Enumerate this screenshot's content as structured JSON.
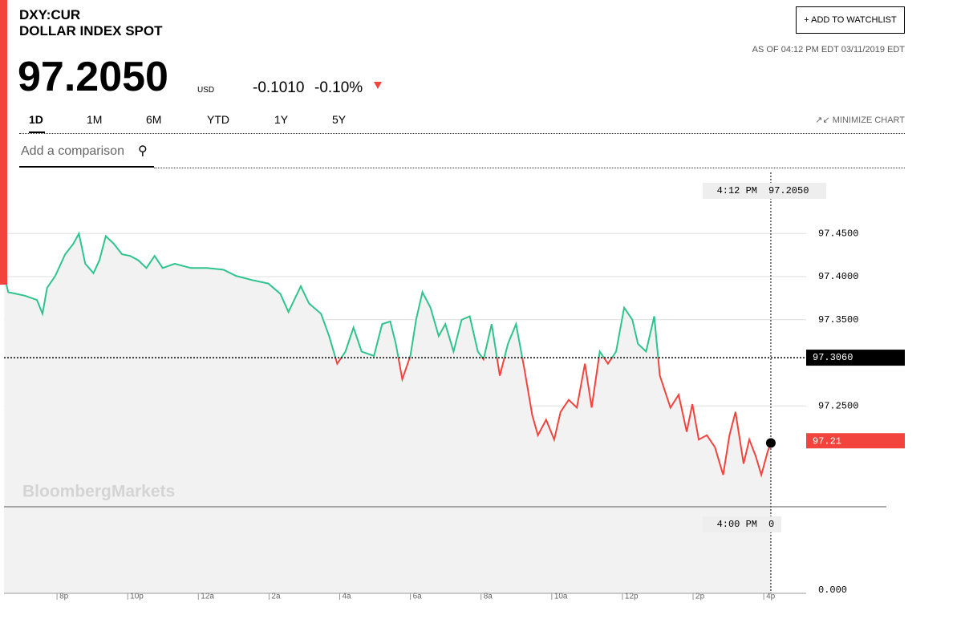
{
  "header": {
    "symbol": "DXY:CUR",
    "name": "DOLLAR INDEX SPOT",
    "price": "97.2050",
    "currency": "USD",
    "change": "-0.1010",
    "change_pct": "-0.10%",
    "watchlist_button": "ADD TO WATCHLIST",
    "as_of": "AS OF 04:12 PM EDT 03/11/2019 EDT"
  },
  "range_tabs": [
    "1D",
    "1M",
    "6M",
    "YTD",
    "1Y",
    "5Y"
  ],
  "minimize": "MINIMIZE CHART",
  "comparison_placeholder": "Add a comparison",
  "chart_data": {
    "type": "line",
    "watermark": "BloombergMarkets",
    "x": [
      18.51,
      18.62,
      19.08,
      19.43,
      19.59,
      19.72,
      19.95,
      20.23,
      20.46,
      20.62,
      20.8,
      21.03,
      21.2,
      21.38,
      21.61,
      21.84,
      22.07,
      22.3,
      22.53,
      22.76,
      22.99,
      23.33,
      23.79,
      24.25,
      24.71,
      25.06,
      25.52,
      25.98,
      26.32,
      26.55,
      26.9,
      27.13,
      27.47,
      27.7,
      27.93,
      28.16,
      28.39,
      28.62,
      28.97,
      29.2,
      29.43,
      29.59,
      29.77,
      30.0,
      30.16,
      30.34,
      30.57,
      30.8,
      30.99,
      31.22,
      31.45,
      31.68,
      31.91,
      32.07,
      32.3,
      32.53,
      32.76,
      32.99,
      33.22,
      33.45,
      33.61,
      33.84,
      34.07,
      34.25,
      34.48,
      34.71,
      34.94,
      35.13,
      35.36,
      35.59,
      35.82,
      36.05,
      36.28,
      36.44,
      36.67,
      36.9,
      37.06,
      37.36,
      37.59,
      37.82,
      37.98,
      38.16,
      38.39,
      38.62,
      38.85,
      39.03,
      39.2,
      39.43,
      39.59,
      39.77,
      39.93,
      40.11,
      40.2
    ],
    "series": [
      {
        "values": [
          97.401,
          97.382,
          97.378,
          97.373,
          97.357,
          97.387,
          97.401,
          97.426,
          97.438,
          97.45,
          97.415,
          97.404,
          97.419,
          97.447,
          97.438,
          97.426,
          97.424,
          97.419,
          97.41,
          97.424,
          97.41,
          97.415,
          97.41,
          97.41,
          97.408,
          97.401,
          97.396,
          97.392,
          97.38,
          97.359,
          97.389,
          97.369,
          97.357,
          97.331,
          97.299,
          97.313,
          97.341,
          97.313,
          97.308,
          97.345,
          97.348,
          97.322,
          97.281,
          97.308,
          97.35,
          97.382,
          97.364,
          97.331,
          97.345,
          97.313,
          97.35,
          97.354,
          97.313,
          97.304,
          97.345,
          97.285,
          97.322,
          97.345,
          97.294,
          97.239,
          97.216,
          97.234,
          97.211,
          97.243,
          97.257,
          97.248,
          97.299,
          97.248,
          97.313,
          97.299,
          97.313,
          97.364,
          97.35,
          97.322,
          97.313,
          97.354,
          97.285,
          97.248,
          97.263,
          97.22,
          97.252,
          97.211,
          97.216,
          97.202,
          97.17,
          97.216,
          97.243,
          97.183,
          97.211,
          97.192,
          97.17,
          97.197,
          97.207
        ],
        "color_above": "#2ec48d",
        "color_below": "#f2443d"
      }
    ],
    "reference": {
      "value": 97.306,
      "label": "97.3060"
    },
    "last": {
      "value": 97.21,
      "label": "97.21"
    },
    "crosshair": {
      "x": 40.2,
      "time": "4:12 PM",
      "price": "97.2050"
    },
    "volume_tooltip": {
      "time": "4:00 PM",
      "value": "0"
    },
    "volume_axis_label": "0.000",
    "xlim": [
      18.5,
      41.2
    ],
    "xticks": [
      {
        "value": 20,
        "label": "8p"
      },
      {
        "value": 22,
        "label": "10p"
      },
      {
        "value": 24,
        "label": "12a"
      },
      {
        "value": 26,
        "label": "2a"
      },
      {
        "value": 28,
        "label": "4a"
      },
      {
        "value": 30,
        "label": "6a"
      },
      {
        "value": 32,
        "label": "8a"
      },
      {
        "value": 34,
        "label": "10a"
      },
      {
        "value": 36,
        "label": "12p"
      },
      {
        "value": 38,
        "label": "2p"
      },
      {
        "value": 40,
        "label": "4p"
      }
    ],
    "ylim": [
      97.133,
      97.521
    ],
    "yticks": [
      {
        "value": 97.25,
        "label": "97.2500"
      },
      {
        "value": 97.35,
        "label": "97.3500"
      },
      {
        "value": 97.4,
        "label": "97.4000"
      },
      {
        "value": 97.45,
        "label": "97.4500"
      }
    ],
    "grid": true
  }
}
